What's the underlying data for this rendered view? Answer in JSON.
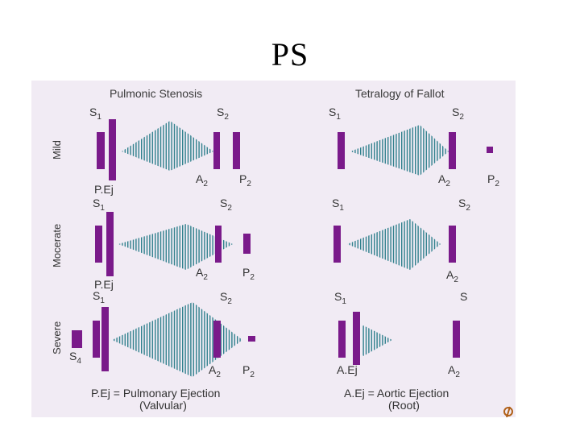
{
  "title": "PS",
  "columns": {
    "left": "Pulmonic Stenosis",
    "right": "Tetralogy of Fallot"
  },
  "rows": {
    "mild": "Mild",
    "moderate": "Mocerate",
    "severe": "Severe"
  },
  "labels": {
    "s1": "S",
    "s2": "S",
    "sub1": "1",
    "sub2": "2",
    "sub4": "4",
    "a2": "A",
    "p2": "P",
    "s4": "S",
    "s_plain": "S",
    "p_ej": "P.Ej",
    "a_ej": "A.Ej"
  },
  "footnotes": {
    "left_line1": "P.Ej = Pulmonary Ejection",
    "left_line2": "(Valvular)",
    "right_line1": "A.Ej = Aortic Ejection",
    "right_line2": "(Root)"
  },
  "colors": {
    "purple": "#7a1a8a",
    "murmur": "#2e7f8c",
    "panel": "#f1ebf4"
  },
  "corner_icon": "speaker-icon"
}
